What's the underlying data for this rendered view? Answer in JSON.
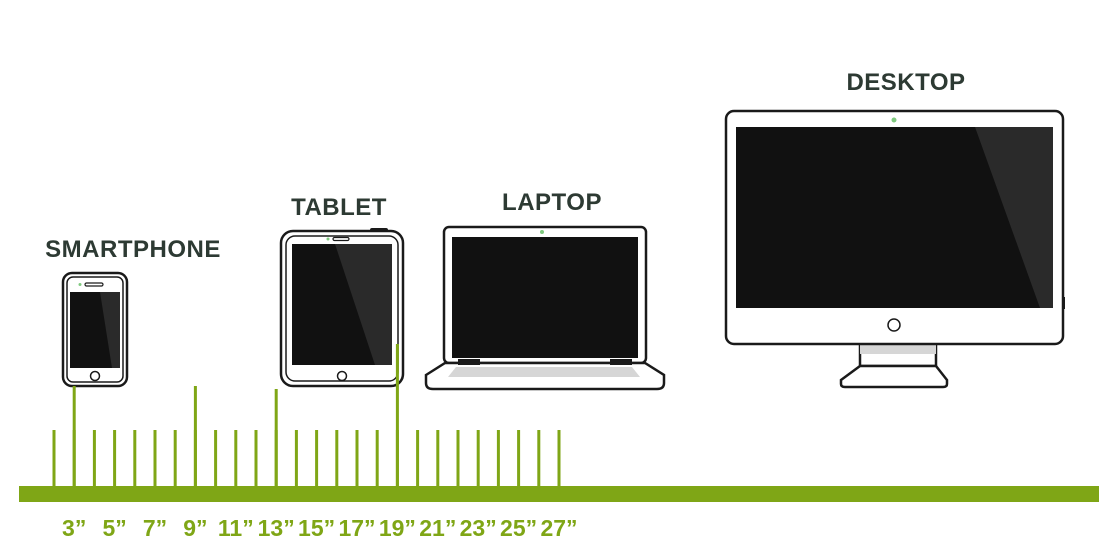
{
  "colors": {
    "accent": "#7fa616",
    "label_text": "#2d3a33",
    "device_outline": "#1a1a1a",
    "screen": "#111111",
    "camera": "#7fc97f"
  },
  "devices": [
    {
      "name": "SMARTPHONE",
      "size_inches": 3
    },
    {
      "name": "TABLET",
      "size_inches": 9
    },
    {
      "name": "LAPTOP",
      "size_inches": 13
    },
    {
      "name": "DESKTOP",
      "size_inches": 19
    }
  ],
  "scale": {
    "tick_labels": [
      "3”",
      "5”",
      "7”",
      "9”",
      "11”",
      "13”",
      "15”",
      "17”",
      "19”",
      "21”",
      "23”",
      "25”",
      "27”"
    ]
  }
}
